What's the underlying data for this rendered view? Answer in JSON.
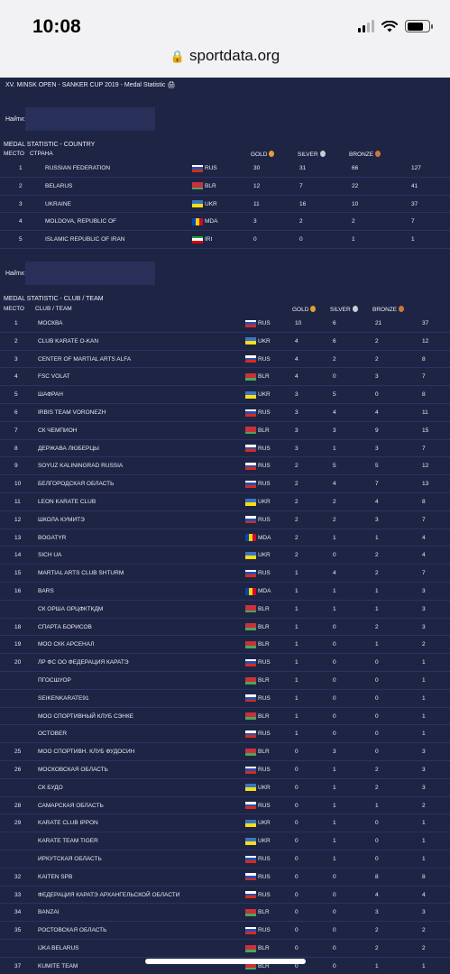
{
  "status_bar": {
    "time": "10:08"
  },
  "browser": {
    "url": "sportdata.org"
  },
  "page_title": "XV. MINSK OPEN - SANKER CUP 2019 - Medal Statistic 🖨",
  "search": {
    "label": "Найти:"
  },
  "country_table": {
    "title": "MEDAL STATISTIC - COUNTRY",
    "headers": {
      "place": "МЕСТО",
      "name": "СТРАНА",
      "gold": "GOLD",
      "silver": "SILVER",
      "bronze": "BRONZE"
    },
    "rows": [
      {
        "place": "1",
        "name": "RUSSIAN FEDERATION",
        "code": "RUS",
        "gold": "30",
        "silver": "31",
        "bronze": "66",
        "total": "127"
      },
      {
        "place": "2",
        "name": "BELARUS",
        "code": "BLR",
        "gold": "12",
        "silver": "7",
        "bronze": "22",
        "total": "41"
      },
      {
        "place": "3",
        "name": "UKRAINE",
        "code": "UKR",
        "gold": "11",
        "silver": "16",
        "bronze": "10",
        "total": "37"
      },
      {
        "place": "4",
        "name": "MOLDOVA, REPUBLIC OF",
        "code": "MDA",
        "gold": "3",
        "silver": "2",
        "bronze": "2",
        "total": "7"
      },
      {
        "place": "5",
        "name": "ISLAMIC REPUBLIC OF IRAN",
        "code": "IRI",
        "gold": "0",
        "silver": "0",
        "bronze": "1",
        "total": "1"
      }
    ]
  },
  "club_table": {
    "title": "MEDAL STATISTIC - CLUB / TEAM",
    "headers": {
      "place": "МЕСТО",
      "name": "CLUB / TEAM",
      "gold": "GOLD",
      "silver": "SILVER",
      "bronze": "BRONZE"
    },
    "rows": [
      {
        "place": "1",
        "name": "МОСКВА",
        "code": "RUS",
        "gold": "10",
        "silver": "6",
        "bronze": "21",
        "total": "37"
      },
      {
        "place": "2",
        "name": "CLUB KARATE O-KAN",
        "code": "UKR",
        "gold": "4",
        "silver": "6",
        "bronze": "2",
        "total": "12"
      },
      {
        "place": "3",
        "name": "CENTER OF MARTIAL ARTS ALFA",
        "code": "RUS",
        "gold": "4",
        "silver": "2",
        "bronze": "2",
        "total": "8"
      },
      {
        "place": "4",
        "name": "FSC VOLAT",
        "code": "BLR",
        "gold": "4",
        "silver": "0",
        "bronze": "3",
        "total": "7"
      },
      {
        "place": "5",
        "name": "ШАФРАН",
        "code": "UKR",
        "gold": "3",
        "silver": "5",
        "bronze": "0",
        "total": "8"
      },
      {
        "place": "6",
        "name": "IRBIS TEAM VORONEZH",
        "code": "RUS",
        "gold": "3",
        "silver": "4",
        "bronze": "4",
        "total": "11"
      },
      {
        "place": "7",
        "name": "СК ЧЕМПИОН",
        "code": "BLR",
        "gold": "3",
        "silver": "3",
        "bronze": "9",
        "total": "15"
      },
      {
        "place": "8",
        "name": "ДЕРЖАВА ЛЮБЕРЦЫ",
        "code": "RUS",
        "gold": "3",
        "silver": "1",
        "bronze": "3",
        "total": "7"
      },
      {
        "place": "9",
        "name": "SOYUZ KALININGRAD RUSSIA",
        "code": "RUS",
        "gold": "2",
        "silver": "5",
        "bronze": "5",
        "total": "12"
      },
      {
        "place": "10",
        "name": "БЕЛГОРОДСКАЯ ОБЛАСТЬ",
        "code": "RUS",
        "gold": "2",
        "silver": "4",
        "bronze": "7",
        "total": "13"
      },
      {
        "place": "11",
        "name": "LEON KARATE CLUB",
        "code": "UKR",
        "gold": "2",
        "silver": "2",
        "bronze": "4",
        "total": "8"
      },
      {
        "place": "12",
        "name": "ШКОЛА КУМИТЭ",
        "code": "RUS",
        "gold": "2",
        "silver": "2",
        "bronze": "3",
        "total": "7"
      },
      {
        "place": "13",
        "name": "BOGATYR",
        "code": "MDA",
        "gold": "2",
        "silver": "1",
        "bronze": "1",
        "total": "4"
      },
      {
        "place": "14",
        "name": "SICH UA",
        "code": "UKR",
        "gold": "2",
        "silver": "0",
        "bronze": "2",
        "total": "4"
      },
      {
        "place": "15",
        "name": "MARTIAL ARTS CLUB SHTURM",
        "code": "RUS",
        "gold": "1",
        "silver": "4",
        "bronze": "2",
        "total": "7"
      },
      {
        "place": "16",
        "name": "BARS",
        "code": "MDA",
        "gold": "1",
        "silver": "1",
        "bronze": "1",
        "total": "3"
      },
      {
        "place": "",
        "name": "СК ОРША ОРЦФКТКДМ",
        "code": "BLR",
        "gold": "1",
        "silver": "1",
        "bronze": "1",
        "total": "3"
      },
      {
        "place": "18",
        "name": "СПАРТА БОРИСОВ",
        "code": "BLR",
        "gold": "1",
        "silver": "0",
        "bronze": "2",
        "total": "3"
      },
      {
        "place": "19",
        "name": "МОО СКК АРСЕНАЛ",
        "code": "BLR",
        "gold": "1",
        "silver": "0",
        "bronze": "1",
        "total": "2"
      },
      {
        "place": "20",
        "name": "ЛР ФС ОО ФЕДЕРАЦИЯ КАРАТЭ",
        "code": "RUS",
        "gold": "1",
        "silver": "0",
        "bronze": "0",
        "total": "1"
      },
      {
        "place": "",
        "name": "ПГОСШУОР",
        "code": "BLR",
        "gold": "1",
        "silver": "0",
        "bronze": "0",
        "total": "1"
      },
      {
        "place": "",
        "name": "SEIKENKARATE91",
        "code": "RUS",
        "gold": "1",
        "silver": "0",
        "bronze": "0",
        "total": "1"
      },
      {
        "place": "",
        "name": "МОО СПОРТИВНЫЙ КЛУБ СЭНКЕ",
        "code": "BLR",
        "gold": "1",
        "silver": "0",
        "bronze": "0",
        "total": "1"
      },
      {
        "place": "",
        "name": "OCTOBER",
        "code": "RUS",
        "gold": "1",
        "silver": "0",
        "bronze": "0",
        "total": "1"
      },
      {
        "place": "25",
        "name": "МОО СПОРТИВН. КЛУБ ФУДОСИН",
        "code": "BLR",
        "gold": "0",
        "silver": "3",
        "bronze": "0",
        "total": "3"
      },
      {
        "place": "26",
        "name": "МОСКОВСКАЯ ОБЛАСТЬ",
        "code": "RUS",
        "gold": "0",
        "silver": "1",
        "bronze": "2",
        "total": "3"
      },
      {
        "place": "",
        "name": "СК БУДО",
        "code": "UKR",
        "gold": "0",
        "silver": "1",
        "bronze": "2",
        "total": "3"
      },
      {
        "place": "28",
        "name": "САМАРСКАЯ ОБЛАСТЬ",
        "code": "RUS",
        "gold": "0",
        "silver": "1",
        "bronze": "1",
        "total": "2"
      },
      {
        "place": "29",
        "name": "KARATE CLUB IPPON",
        "code": "UKR",
        "gold": "0",
        "silver": "1",
        "bronze": "0",
        "total": "1"
      },
      {
        "place": "",
        "name": "KARATE TEAM TIGER",
        "code": "UKR",
        "gold": "0",
        "silver": "1",
        "bronze": "0",
        "total": "1"
      },
      {
        "place": "",
        "name": "ИРКУТСКАЯ ОБЛАСТЬ",
        "code": "RUS",
        "gold": "0",
        "silver": "1",
        "bronze": "0",
        "total": "1"
      },
      {
        "place": "32",
        "name": "KAITEN SPB",
        "code": "RUS",
        "gold": "0",
        "silver": "0",
        "bronze": "8",
        "total": "8"
      },
      {
        "place": "33",
        "name": "ФЕДЕРАЦИЯ КАРАТЭ АРХАНГЕЛЬСКОЙ ОБЛАСТИ",
        "code": "RUS",
        "gold": "0",
        "silver": "0",
        "bronze": "4",
        "total": "4"
      },
      {
        "place": "34",
        "name": "BANZAI",
        "code": "BLR",
        "gold": "0",
        "silver": "0",
        "bronze": "3",
        "total": "3"
      },
      {
        "place": "35",
        "name": "РОСТОВСКАЯ ОБЛАСТЬ",
        "code": "RUS",
        "gold": "0",
        "silver": "0",
        "bronze": "2",
        "total": "2"
      },
      {
        "place": "",
        "name": "IJKA BELARUS",
        "code": "BLR",
        "gold": "0",
        "silver": "0",
        "bronze": "2",
        "total": "2"
      },
      {
        "place": "37",
        "name": "KUMITE TEAM",
        "code": "BLR",
        "gold": "0",
        "silver": "0",
        "bronze": "1",
        "total": "1"
      }
    ]
  },
  "colors": {
    "background": "#1e2444",
    "gold": "#e0a030",
    "silver": "#c8ccd4",
    "bronze": "#c87a3c"
  }
}
